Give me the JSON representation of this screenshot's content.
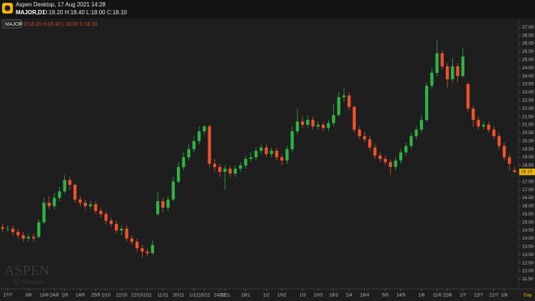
{
  "header": {
    "title": "Aspen Desktop, 17 Aug 2021 14:28",
    "symbol_line": "MAJOR,D1",
    "ohlc": "O:18.20 H:18.40 L:18.00 C:18.10"
  },
  "legend": {
    "symbol": "MAJOR",
    "ohlc": "O:18.20 H:18.40 L:18.00 C:18.10"
  },
  "chart_data": {
    "type": "candlestick",
    "categories": [
      null,
      "17/7",
      null,
      null,
      null,
      "3/8",
      null,
      null,
      "13/8",
      null,
      "24/8",
      null,
      "1/9",
      null,
      null,
      "14/9",
      null,
      null,
      "25/9",
      null,
      "1/10",
      null,
      null,
      "12/10",
      null,
      null,
      "22/10",
      null,
      "2/11",
      null,
      null,
      "11/11",
      null,
      null,
      "20/11",
      null,
      null,
      "1/12",
      null,
      "15/12",
      null,
      null,
      "24/12",
      "2021",
      null,
      null,
      null,
      "18/1",
      null,
      null,
      null,
      "1/2",
      null,
      null,
      "10/2",
      null,
      null,
      null,
      "1/3",
      null,
      null,
      "10/3",
      null,
      null,
      "19/3",
      null,
      null,
      "1/4",
      null,
      null,
      "16/4",
      null,
      null,
      null,
      "5/5",
      null,
      null,
      "14/5",
      null,
      null,
      null,
      "1/6",
      null,
      null,
      "11/6",
      null,
      "22/6",
      null,
      null,
      "1/7",
      null,
      null,
      "12/7",
      null,
      null,
      "21/7",
      null,
      "2/8",
      null,
      null
    ],
    "open": [
      14.7,
      14.6,
      14.6,
      14.4,
      14.2,
      14.0,
      14.1,
      14.1,
      15.0,
      16.2,
      16.0,
      16.5,
      16.9,
      17.6,
      17.3,
      16.4,
      16.2,
      16.0,
      16.1,
      15.7,
      15.5,
      15.1,
      14.9,
      14.5,
      14.6,
      14.0,
      13.8,
      13.4,
      13.2,
      13.1,
      15.5,
      16.3,
      15.9,
      16.4,
      17.5,
      18.4,
      19.0,
      19.5,
      20.0,
      20.6,
      20.9,
      18.6,
      18.4,
      18.1,
      18.3,
      18.0,
      18.3,
      18.5,
      18.9,
      19.0,
      19.4,
      19.6,
      19.2,
      19.4,
      19.0,
      18.8,
      19.5,
      20.6,
      21.2,
      21.0,
      21.3,
      20.9,
      21.0,
      20.8,
      21.1,
      21.6,
      22.7,
      22.8,
      22.1,
      20.7,
      20.3,
      20.1,
      19.6,
      19.1,
      18.9,
      18.7,
      18.4,
      18.8,
      19.3,
      19.7,
      20.3,
      20.7,
      21.3,
      23.4,
      24.2,
      25.4,
      24.6,
      23.8,
      24.6,
      24.0,
      23.5,
      22.0,
      21.3,
      20.9,
      21.0,
      20.7,
      20.3,
      19.7,
      19.0,
      18.2
    ],
    "high": [
      14.9,
      14.8,
      14.8,
      14.6,
      14.4,
      14.3,
      14.3,
      15.2,
      16.5,
      16.6,
      16.8,
      17.2,
      17.9,
      17.8,
      17.4,
      16.6,
      16.4,
      16.3,
      16.3,
      15.9,
      15.7,
      15.3,
      15.1,
      14.8,
      14.8,
      14.2,
      14.0,
      13.6,
      13.4,
      13.9,
      16.9,
      16.5,
      16.6,
      17.8,
      18.7,
      19.3,
      19.8,
      20.3,
      20.9,
      21.0,
      21.0,
      18.9,
      18.6,
      18.5,
      18.5,
      18.5,
      18.7,
      19.1,
      19.3,
      19.6,
      19.8,
      19.8,
      19.6,
      19.6,
      19.2,
      19.7,
      20.9,
      22.0,
      21.5,
      21.6,
      21.5,
      21.2,
      21.2,
      21.3,
      22.3,
      23.0,
      23.3,
      23.0,
      22.2,
      20.9,
      20.6,
      20.3,
      19.8,
      19.3,
      19.1,
      18.9,
      19.0,
      19.5,
      19.9,
      20.5,
      20.9,
      21.6,
      23.6,
      24.5,
      26.2,
      25.6,
      24.8,
      25.1,
      24.8,
      25.7,
      23.6,
      22.2,
      21.5,
      21.2,
      21.2,
      20.9,
      20.5,
      19.9,
      19.2,
      18.4
    ],
    "low": [
      14.4,
      14.4,
      14.2,
      14.0,
      13.8,
      13.8,
      13.8,
      14.0,
      14.9,
      15.8,
      15.8,
      16.3,
      16.8,
      17.0,
      16.2,
      16.0,
      15.8,
      15.8,
      15.5,
      15.3,
      14.9,
      14.7,
      14.3,
      14.2,
      13.8,
      13.6,
      13.2,
      12.8,
      12.9,
      13.0,
      15.4,
      15.6,
      15.7,
      16.3,
      17.4,
      18.2,
      18.8,
      19.3,
      19.8,
      20.4,
      18.4,
      18.1,
      17.8,
      17.0,
      17.8,
      17.8,
      18.1,
      18.3,
      18.7,
      18.8,
      19.2,
      19.0,
      19.0,
      18.8,
      18.5,
      18.6,
      19.3,
      20.4,
      20.8,
      20.8,
      20.7,
      20.7,
      20.6,
      20.6,
      20.9,
      21.5,
      22.4,
      21.9,
      20.5,
      20.1,
      19.9,
      19.4,
      18.9,
      18.7,
      18.5,
      17.9,
      18.2,
      18.6,
      19.1,
      19.5,
      20.1,
      20.5,
      21.2,
      23.2,
      24.0,
      24.4,
      23.3,
      23.6,
      23.6,
      23.9,
      21.8,
      20.9,
      20.7,
      20.7,
      20.5,
      20.1,
      19.5,
      18.8,
      18.2,
      18.0
    ],
    "close": [
      14.6,
      14.6,
      14.4,
      14.2,
      14.0,
      14.1,
      14.0,
      15.0,
      16.2,
      16.0,
      16.5,
      16.9,
      17.6,
      17.3,
      16.4,
      16.2,
      16.0,
      16.1,
      15.7,
      15.5,
      15.1,
      14.9,
      14.5,
      14.6,
      14.0,
      13.8,
      13.4,
      13.2,
      13.1,
      13.6,
      16.3,
      15.9,
      16.4,
      17.5,
      18.4,
      19.0,
      19.5,
      20.0,
      20.6,
      20.9,
      18.6,
      18.4,
      18.1,
      18.3,
      18.0,
      18.3,
      18.5,
      18.9,
      19.0,
      19.4,
      19.6,
      19.2,
      19.4,
      19.0,
      18.8,
      19.5,
      20.6,
      21.2,
      21.0,
      21.3,
      20.9,
      21.0,
      20.8,
      21.1,
      21.6,
      22.7,
      22.8,
      22.1,
      20.7,
      20.3,
      20.1,
      19.6,
      19.1,
      18.9,
      18.7,
      18.4,
      18.8,
      19.3,
      19.7,
      20.3,
      20.7,
      21.3,
      23.4,
      24.2,
      25.4,
      24.6,
      23.8,
      24.6,
      24.0,
      25.2,
      22.0,
      21.3,
      20.9,
      21.0,
      20.7,
      20.3,
      19.7,
      19.0,
      18.6,
      18.1
    ],
    "up_color": "#2fb344",
    "down_color": "#f0522a",
    "ylim": [
      10.9,
      27.45
    ],
    "yticks": [
      {
        "value": 11.5,
        "label": "11.50"
      },
      {
        "value": 12,
        "label": "12.00"
      },
      {
        "value": 12.5,
        "label": "12.50"
      },
      {
        "value": 13,
        "label": "13.00"
      },
      {
        "value": 13.5,
        "label": "13.50"
      },
      {
        "value": 14,
        "label": "14.00"
      },
      {
        "value": 14.5,
        "label": "14.50"
      },
      {
        "value": 15,
        "label": "15.00"
      },
      {
        "value": 15.5,
        "label": "15.50"
      },
      {
        "value": 16,
        "label": "16.00"
      },
      {
        "value": 16.5,
        "label": "16.50"
      },
      {
        "value": 17,
        "label": "17.00"
      },
      {
        "value": 17.5,
        "label": "17.50"
      },
      {
        "value": 18,
        "label": "18.00"
      },
      {
        "value": 18.5,
        "label": "18.50"
      },
      {
        "value": 19,
        "label": "19.00"
      },
      {
        "value": 19.5,
        "label": "19.50"
      },
      {
        "value": 20,
        "label": "20.00"
      },
      {
        "value": 20.5,
        "label": "20.50"
      },
      {
        "value": 21,
        "label": "21.00"
      },
      {
        "value": 21.5,
        "label": "21.50"
      },
      {
        "value": 22,
        "label": "22.00"
      },
      {
        "value": 22.5,
        "label": "22.50"
      },
      {
        "value": 23,
        "label": "23.00"
      },
      {
        "value": 23.5,
        "label": "23.50"
      },
      {
        "value": 24,
        "label": "24.00"
      },
      {
        "value": 24.5,
        "label": "24.50"
      },
      {
        "value": 25,
        "label": "25.00"
      },
      {
        "value": 25.5,
        "label": "25.50"
      },
      {
        "value": 26,
        "label": "26.00"
      },
      {
        "value": 26.5,
        "label": "26.50"
      },
      {
        "value": 27,
        "label": "27.00"
      }
    ],
    "grid": false,
    "x_axis_unit": "Day",
    "price_tag": "18.10",
    "watermark": "ASPEN",
    "watermark_sub": "by ThaiQuest"
  }
}
